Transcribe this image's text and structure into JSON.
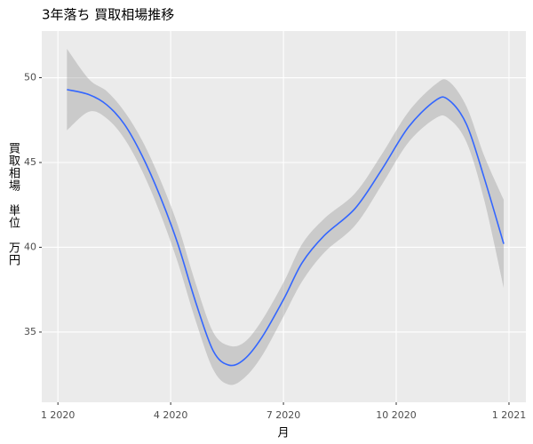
{
  "chart_data": {
    "type": "smooth",
    "title": "3年落ち 買取相場推移",
    "xlabel": "月",
    "ylabel": "買取相場　単位　万円",
    "x": [
      0.24,
      0.83,
      1.3,
      1.77,
      2.24,
      2.72,
      3.19,
      3.66,
      4.13,
      4.55,
      4.96,
      5.43,
      6.02,
      6.5,
      7.09,
      7.91,
      8.62,
      9.33,
      10.04,
      10.39,
      10.87,
      11.34,
      11.86
    ],
    "y": [
      49.3,
      49.0,
      48.4,
      47.25,
      45.4,
      43.0,
      40.2,
      36.8,
      33.9,
      33.05,
      33.4,
      34.7,
      37.0,
      39.1,
      40.7,
      42.3,
      44.6,
      47.1,
      48.65,
      48.7,
      47.25,
      44.1,
      40.2
    ],
    "ymin": [
      46.9,
      48.0,
      47.6,
      46.4,
      44.5,
      42.0,
      39.1,
      35.7,
      32.8,
      31.9,
      32.3,
      33.6,
      36.0,
      38.0,
      39.7,
      41.3,
      43.7,
      46.2,
      47.6,
      47.6,
      46.2,
      42.8,
      37.6
    ],
    "ymax": [
      51.7,
      49.9,
      49.2,
      48.0,
      46.3,
      44.0,
      41.3,
      37.9,
      35.0,
      34.2,
      34.4,
      35.7,
      38.0,
      40.2,
      41.7,
      43.2,
      45.5,
      48.0,
      49.6,
      49.8,
      48.3,
      45.4,
      42.8
    ],
    "line_color": "#3366ff",
    "band_color": "#999999",
    "xlim": [
      -0.43,
      12.45
    ],
    "xticks": [
      {
        "value": 0,
        "label": "1 2020"
      },
      {
        "value": 3,
        "label": "4 2020"
      },
      {
        "value": 6,
        "label": "7 2020"
      },
      {
        "value": 9,
        "label": "10 2020"
      },
      {
        "value": 12,
        "label": "1 2021"
      }
    ],
    "ylim": [
      30.86,
      52.75
    ],
    "yticks": [
      35,
      40,
      45,
      50
    ],
    "grid": true
  }
}
